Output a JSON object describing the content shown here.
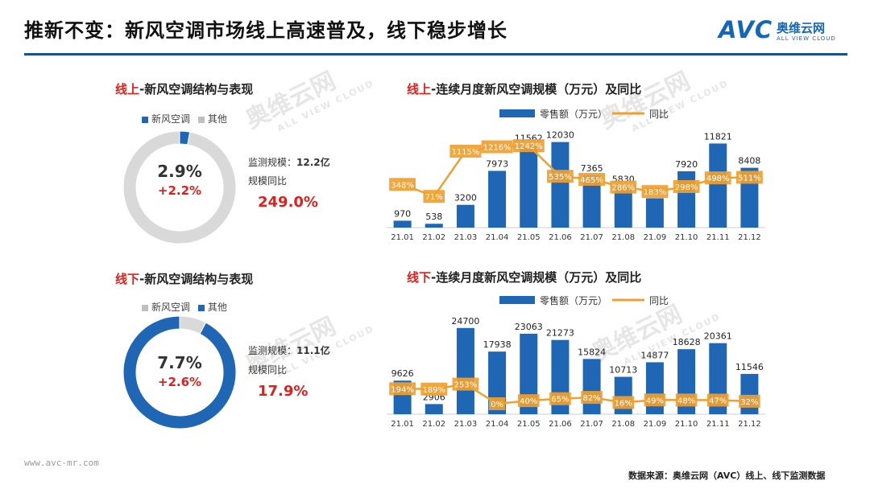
{
  "header": {
    "title": "推新不变：新风空调市场线上高速普及，线下稳步增长",
    "logo_mark": "AVC",
    "logo_cn": "奥维云网",
    "logo_en": "ALL VIEW CLOUD"
  },
  "online_structure": {
    "title_channel": "线上",
    "title_rest": "-新风空调结构与表现",
    "legend": [
      "新风空调",
      "其他"
    ],
    "share_pct_label": "2.9%",
    "share_change_label": "+2.2%",
    "share_value": 0.029,
    "scale_label": "监测规模：",
    "scale_value": "12.2亿",
    "yoy_label": "规模同比",
    "yoy_value": "249.0%"
  },
  "offline_structure": {
    "title_channel": "线下",
    "title_rest": "-新风空调结构与表现",
    "legend": [
      "新风空调",
      "其他"
    ],
    "share_pct_label": "7.7%",
    "share_change_label": "+2.6%",
    "share_value": 0.077,
    "scale_label": "监测规模：",
    "scale_value": "11.1亿",
    "yoy_label": "规模同比",
    "yoy_value": "17.9%"
  },
  "online_chart": {
    "title_channel": "线上",
    "title_rest": "-连续月度新风空调规模（万元）及同比"
  },
  "offline_chart": {
    "title_channel": "线下",
    "title_rest": "-连续月度新风空调规模（万元）及同比"
  },
  "chart_data": [
    {
      "type": "pie",
      "categories": [
        "新风空调",
        "其他"
      ],
      "values": [
        2.9,
        97.1
      ],
      "colors": [
        "#1f66b5",
        "#d9d9d9"
      ],
      "note_labels": [
        "2.9%",
        "+2.2%"
      ]
    },
    {
      "type": "bar",
      "categories": [
        "21.01",
        "21.02",
        "21.03",
        "21.04",
        "21.05",
        "21.06",
        "21.07",
        "21.08",
        "21.09",
        "21.10",
        "21.11",
        "21.12"
      ],
      "series": [
        {
          "name": "零售额（万元）",
          "type": "bar",
          "values": [
            970,
            538,
            3200,
            7973,
            11562,
            12030,
            7365,
            5830,
            4124,
            7920,
            11821,
            8408
          ],
          "color": "#1f66b5"
        },
        {
          "name": "同比",
          "type": "line",
          "values": [
            348,
            71,
            1115,
            1216,
            1242,
            535,
            465,
            286,
            183,
            298,
            498,
            511
          ],
          "labels": [
            "348%",
            "71%",
            "1115%",
            "1216%",
            "1242%",
            "535%",
            "465%",
            "286%",
            "183%",
            "298%",
            "498%",
            "511%"
          ],
          "color": "#f0a030"
        }
      ],
      "ylim": [
        0,
        13000
      ],
      "legend": "top"
    },
    {
      "type": "pie",
      "categories": [
        "新风空调",
        "其他"
      ],
      "values": [
        7.7,
        92.3
      ],
      "colors": [
        "#d9d9d9",
        "#1f66b5"
      ],
      "note_labels": [
        "7.7%",
        "+2.6%"
      ]
    },
    {
      "type": "bar",
      "categories": [
        "21.01",
        "21.02",
        "21.03",
        "21.04",
        "21.05",
        "21.06",
        "21.07",
        "21.08",
        "21.09",
        "21.10",
        "21.11",
        "21.12"
      ],
      "series": [
        {
          "name": "零售额（万元）",
          "type": "bar",
          "values": [
            9626,
            2906,
            24700,
            17938,
            23063,
            21273,
            15824,
            10713,
            14877,
            18628,
            20361,
            11546
          ],
          "color": "#1f66b5"
        },
        {
          "name": "同比",
          "type": "line",
          "values": [
            194,
            189,
            253,
            0,
            40,
            65,
            82,
            16,
            49,
            48,
            47,
            32
          ],
          "labels": [
            "194%",
            "189%",
            "253%",
            "0%",
            "40%",
            "65%",
            "82%",
            "16%",
            "49%",
            "48%",
            "47%",
            "32%"
          ],
          "color": "#f0a030"
        }
      ],
      "ylim": [
        0,
        26500
      ],
      "legend": "top"
    }
  ],
  "watermark": {
    "cn": "奥维云网",
    "en": "ALL VIEW CLOUD"
  },
  "footer": {
    "url": "www.avc-mr.com",
    "source": "数据来源：奥维云网（AVC）线上、线下监测数据"
  }
}
